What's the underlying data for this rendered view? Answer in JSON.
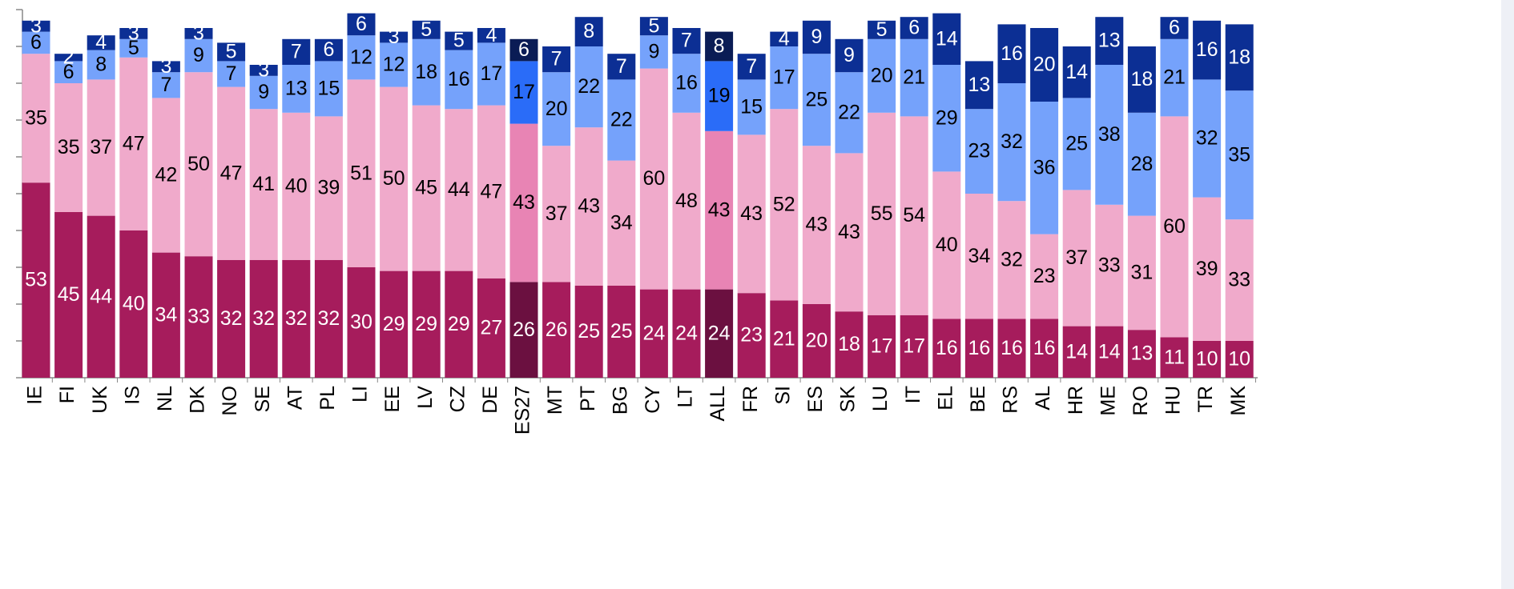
{
  "chart_data": {
    "type": "stacked_bar",
    "categories": [
      "IE",
      "FI",
      "UK",
      "IS",
      "NL",
      "DK",
      "NO",
      "SE",
      "AT",
      "PL",
      "LI",
      "EE",
      "LV",
      "CZ",
      "DE",
      "ES27",
      "MT",
      "PT",
      "BG",
      "CY",
      "LT",
      "ALL",
      "FR",
      "SI",
      "ES",
      "SK",
      "LU",
      "IT",
      "EL",
      "BE",
      "RS",
      "AL",
      "HR",
      "ME",
      "RO",
      "HU",
      "TR",
      "MK"
    ],
    "series": [
      {
        "color": "#a61c5c",
        "highlight_color": "#6b1040",
        "label_color": "#ffffff",
        "values": [
          53,
          45,
          44,
          40,
          34,
          33,
          32,
          32,
          32,
          32,
          30,
          29,
          29,
          29,
          27,
          26,
          26,
          25,
          25,
          24,
          24,
          24,
          23,
          21,
          20,
          18,
          17,
          17,
          16,
          16,
          16,
          16,
          14,
          14,
          13,
          11,
          10,
          10
        ]
      },
      {
        "color": "#f0aacb",
        "highlight_color": "#e884b4",
        "label_color": "#000000",
        "values": [
          35,
          35,
          37,
          47,
          42,
          50,
          47,
          41,
          40,
          39,
          51,
          50,
          45,
          44,
          47,
          43,
          37,
          43,
          34,
          60,
          48,
          43,
          43,
          52,
          43,
          43,
          55,
          54,
          40,
          34,
          32,
          23,
          37,
          33,
          31,
          60,
          39,
          33
        ]
      },
      {
        "color": "#75a2fb",
        "highlight_color": "#2a6cf8",
        "label_color": "#000000",
        "values": [
          6,
          6,
          8,
          5,
          7,
          9,
          7,
          9,
          13,
          15,
          12,
          12,
          18,
          16,
          17,
          17,
          20,
          22,
          22,
          9,
          16,
          19,
          15,
          17,
          25,
          22,
          20,
          21,
          29,
          23,
          32,
          36,
          25,
          38,
          28,
          21,
          32,
          35
        ]
      },
      {
        "color": "#0c2f94",
        "highlight_color": "#0a1c55",
        "label_color": "#ffffff",
        "values": [
          3,
          2,
          4,
          3,
          3,
          3,
          5,
          3,
          7,
          6,
          6,
          3,
          5,
          5,
          4,
          6,
          7,
          8,
          7,
          5,
          7,
          8,
          7,
          4,
          9,
          9,
          5,
          6,
          14,
          13,
          16,
          20,
          14,
          13,
          18,
          6,
          16,
          18
        ]
      }
    ],
    "highlight": [
      15,
      21
    ],
    "ylim": [
      0,
      100
    ],
    "yticks": [
      0,
      10,
      20,
      30,
      40,
      50,
      60,
      70,
      80,
      90,
      100
    ]
  }
}
